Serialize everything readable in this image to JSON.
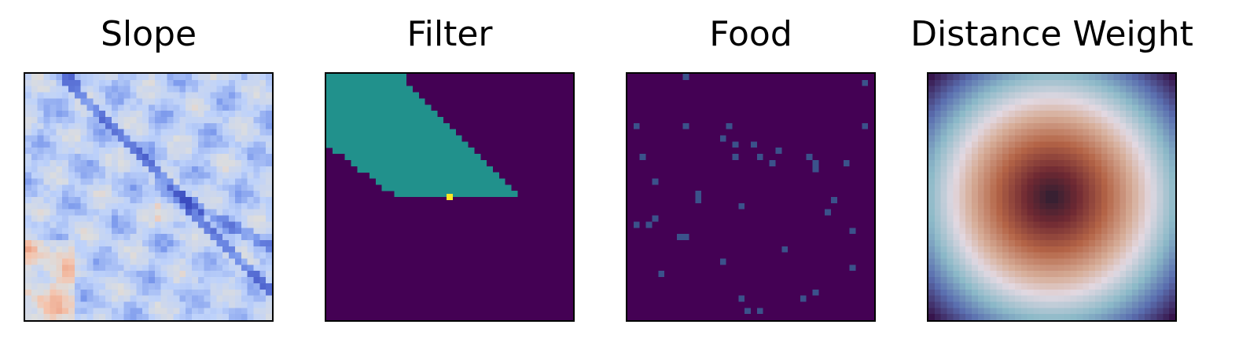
{
  "chart_data": [
    {
      "type": "heatmap",
      "title": "Slope",
      "colormap": "coolwarm",
      "grid": false,
      "description": "terrain slope field; mostly light blue with darker blue ridge channels and warm patches lower-left"
    },
    {
      "type": "heatmap",
      "title": "Filter",
      "colormap": "viridis",
      "grid": false,
      "base_color": "#440154",
      "wedge_color": "#21918c",
      "origin_color": "#fde725"
    },
    {
      "type": "heatmap",
      "title": "Food",
      "colormap": "viridis",
      "grid": false,
      "base_color": "#440154",
      "point_color": "#3b528b"
    },
    {
      "type": "heatmap",
      "title": "Distance Weight",
      "colormap": "twilight_shifted",
      "grid": false,
      "description": "radial rings: dark center, red-brown, pale ring, teal, purple corners"
    }
  ]
}
